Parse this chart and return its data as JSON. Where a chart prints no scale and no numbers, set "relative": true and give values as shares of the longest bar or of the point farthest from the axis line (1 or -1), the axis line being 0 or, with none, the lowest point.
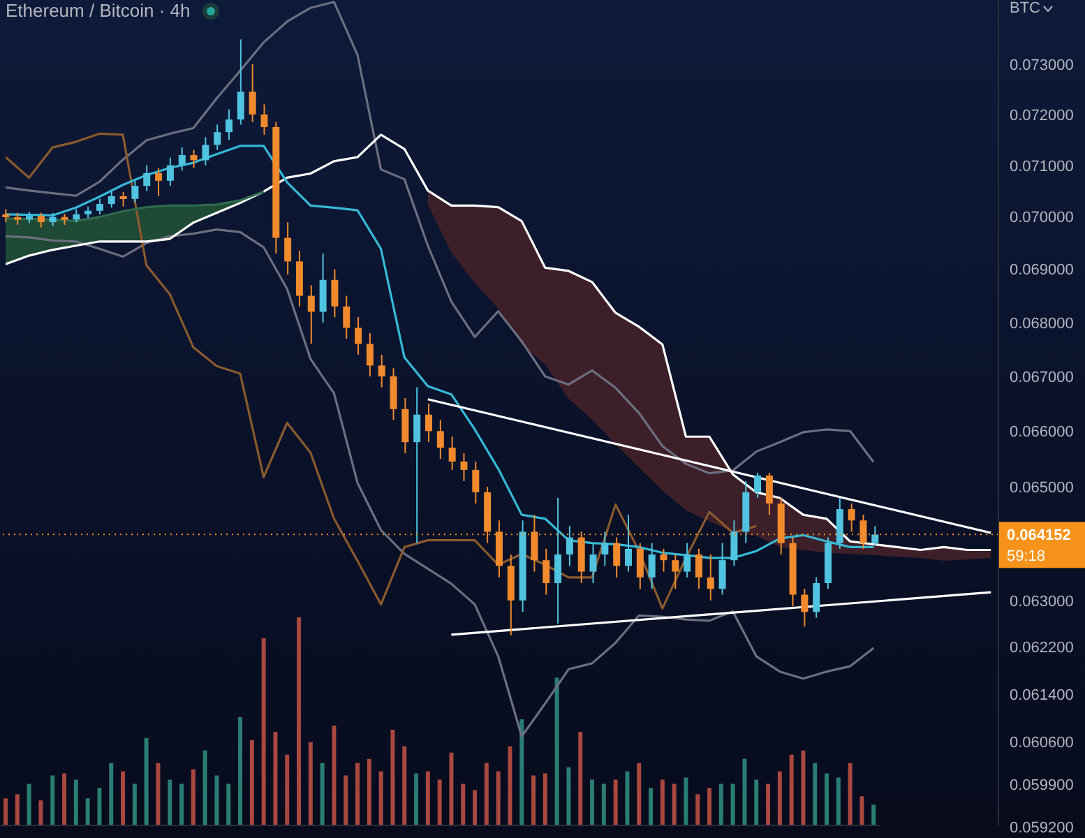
{
  "chart_data": [
    {
      "type": "candlestick",
      "title": "Ethereum / Bitcoin · 4h",
      "ylabel": "BTC",
      "log": true,
      "ylim": [
        0.0592,
        0.0743
      ],
      "tick_labels": "y",
      "yticks": [
        {
          "value": 0.0592,
          "label": "0.059200"
        },
        {
          "value": 0.0599,
          "label": "0.059900"
        },
        {
          "value": 0.0606,
          "label": "0.060600"
        },
        {
          "value": 0.0614,
          "label": "0.061400"
        },
        {
          "value": 0.0622,
          "label": "0.062200"
        },
        {
          "value": 0.063,
          "label": "0.063000"
        },
        {
          "value": 0.065,
          "label": "0.065000"
        },
        {
          "value": 0.066,
          "label": "0.066000"
        },
        {
          "value": 0.067,
          "label": "0.067000"
        },
        {
          "value": 0.068,
          "label": "0.068000"
        },
        {
          "value": 0.069,
          "label": "0.069000"
        },
        {
          "value": 0.07,
          "label": "0.070000"
        },
        {
          "value": 0.071,
          "label": "0.071000"
        },
        {
          "value": 0.072,
          "label": "0.072000"
        },
        {
          "value": 0.073,
          "label": "0.073000"
        }
      ],
      "ref_lines": [
        {
          "axis": "y",
          "value": 0.064152,
          "label": "0.064152",
          "color": "#f7931a",
          "line_style": "dotted"
        }
      ],
      "annotations": [
        "59:18"
      ],
      "categories": [
        null,
        null,
        null,
        null,
        null,
        null,
        null,
        null,
        null,
        null,
        null,
        null,
        null,
        null,
        null,
        null,
        null,
        null,
        null,
        null,
        null,
        null,
        null,
        null,
        null,
        null,
        null,
        null,
        null,
        null,
        null,
        null,
        null,
        null,
        null,
        null,
        null,
        null,
        null,
        null,
        null,
        null,
        null,
        null,
        null,
        null,
        null,
        null,
        null,
        null,
        null,
        null,
        null,
        null,
        null,
        null,
        null,
        null,
        null,
        null,
        null,
        null,
        null,
        null,
        null,
        null,
        null,
        null,
        null,
        null,
        null,
        null,
        null,
        null,
        null,
        null,
        null,
        null,
        null,
        null,
        null,
        null,
        null,
        null,
        null
      ],
      "ohlc": [
        [
          0.07005,
          0.07015,
          0.0699,
          0.07
        ],
        [
          0.07,
          0.07008,
          0.06985,
          0.06995
        ],
        [
          0.06995,
          0.0701,
          0.06988,
          0.07002
        ],
        [
          0.07002,
          0.07008,
          0.0698,
          0.0699
        ],
        [
          0.0699,
          0.07008,
          0.06982,
          0.07
        ],
        [
          0.07,
          0.07006,
          0.06985,
          0.06995
        ],
        [
          0.06995,
          0.07015,
          0.0699,
          0.07005
        ],
        [
          0.07005,
          0.0702,
          0.06998,
          0.07012
        ],
        [
          0.07012,
          0.07035,
          0.07005,
          0.07025
        ],
        [
          0.07025,
          0.0705,
          0.07018,
          0.0704
        ],
        [
          0.0704,
          0.07048,
          0.0702,
          0.07035
        ],
        [
          0.07035,
          0.0707,
          0.07028,
          0.0706
        ],
        [
          0.0706,
          0.071,
          0.0705,
          0.07085
        ],
        [
          0.07085,
          0.07095,
          0.0704,
          0.0707
        ],
        [
          0.0707,
          0.07115,
          0.0706,
          0.071
        ],
        [
          0.071,
          0.07135,
          0.0709,
          0.0712
        ],
        [
          0.0712,
          0.0713,
          0.07095,
          0.0711
        ],
        [
          0.0711,
          0.07155,
          0.071,
          0.0714
        ],
        [
          0.0714,
          0.0718,
          0.0713,
          0.07165
        ],
        [
          0.07165,
          0.0721,
          0.0715,
          0.0719
        ],
        [
          0.0719,
          0.0735,
          0.0718,
          0.07245
        ],
        [
          0.07245,
          0.073,
          0.07185,
          0.072
        ],
        [
          0.072,
          0.0722,
          0.0716,
          0.07175
        ],
        [
          0.07175,
          0.07185,
          0.0693,
          0.0696
        ],
        [
          0.0696,
          0.0699,
          0.0689,
          0.06915
        ],
        [
          0.06915,
          0.06935,
          0.0683,
          0.0685
        ],
        [
          0.0685,
          0.0687,
          0.0676,
          0.0682
        ],
        [
          0.0682,
          0.0693,
          0.068,
          0.0688
        ],
        [
          0.0688,
          0.069,
          0.0681,
          0.0683
        ],
        [
          0.0683,
          0.0685,
          0.0677,
          0.0679
        ],
        [
          0.0679,
          0.0681,
          0.0674,
          0.0676
        ],
        [
          0.0676,
          0.0678,
          0.067,
          0.0672
        ],
        [
          0.0672,
          0.0674,
          0.0668,
          0.067
        ],
        [
          0.067,
          0.06715,
          0.0662,
          0.0664
        ],
        [
          0.0664,
          0.0666,
          0.0656,
          0.0658
        ],
        [
          0.0658,
          0.0668,
          0.064,
          0.0663
        ],
        [
          0.0663,
          0.0665,
          0.0658,
          0.066
        ],
        [
          0.066,
          0.0662,
          0.0655,
          0.0657
        ],
        [
          0.0657,
          0.0659,
          0.0653,
          0.06545
        ],
        [
          0.06545,
          0.0656,
          0.0651,
          0.0653
        ],
        [
          0.0653,
          0.06545,
          0.0647,
          0.0649
        ],
        [
          0.0649,
          0.065,
          0.064,
          0.0642
        ],
        [
          0.0642,
          0.0644,
          0.0634,
          0.0636
        ],
        [
          0.0636,
          0.0638,
          0.0624,
          0.063
        ],
        [
          0.063,
          0.0644,
          0.0628,
          0.0642
        ],
        [
          0.0642,
          0.0645,
          0.0635,
          0.0637
        ],
        [
          0.0637,
          0.0639,
          0.0631,
          0.0633
        ],
        [
          0.0633,
          0.0648,
          0.0626,
          0.0638
        ],
        [
          0.0638,
          0.0643,
          0.0636,
          0.0641
        ],
        [
          0.0641,
          0.0642,
          0.0633,
          0.0635
        ],
        [
          0.0635,
          0.064,
          0.0633,
          0.0638
        ],
        [
          0.0638,
          0.0642,
          0.0636,
          0.064
        ],
        [
          0.064,
          0.0641,
          0.0634,
          0.0636
        ],
        [
          0.0636,
          0.0645,
          0.0635,
          0.0639
        ],
        [
          0.0639,
          0.064,
          0.0632,
          0.0634
        ],
        [
          0.0634,
          0.064,
          0.0632,
          0.0638
        ],
        [
          0.0638,
          0.0639,
          0.0635,
          0.0637
        ],
        [
          0.0637,
          0.0638,
          0.0632,
          0.0635
        ],
        [
          0.0635,
          0.064,
          0.0634,
          0.0638
        ],
        [
          0.0638,
          0.0639,
          0.0632,
          0.0634
        ],
        [
          0.0634,
          0.0638,
          0.063,
          0.0632
        ],
        [
          0.0632,
          0.064,
          0.0631,
          0.0637
        ],
        [
          0.0637,
          0.0644,
          0.0636,
          0.0642
        ],
        [
          0.0642,
          0.0651,
          0.064,
          0.0649
        ],
        [
          0.0649,
          0.06525,
          0.0648,
          0.0652
        ],
        [
          0.0652,
          0.06525,
          0.0645,
          0.0647
        ],
        [
          0.0647,
          0.0648,
          0.0638,
          0.064
        ],
        [
          0.064,
          0.0641,
          0.0629,
          0.0631
        ],
        [
          0.0631,
          0.0632,
          0.06255,
          0.0628
        ],
        [
          0.0628,
          0.0634,
          0.0627,
          0.0633
        ],
        [
          0.0633,
          0.0641,
          0.0632,
          0.064
        ],
        [
          0.064,
          0.0648,
          0.0639,
          0.0646
        ],
        [
          0.0646,
          0.0647,
          0.0642,
          0.0644
        ],
        [
          0.0644,
          0.0645,
          0.0639,
          0.064
        ],
        [
          0.064,
          0.0643,
          0.06395,
          0.06415
        ],
        null,
        null,
        null,
        null,
        null,
        null,
        null,
        null,
        null,
        null
      ],
      "colors": [
        "#f08a2c",
        "#f08a2c",
        "#4fc3e0",
        "#f08a2c",
        "#4fc3e0",
        "#f08a2c",
        "#4fc3e0",
        "#4fc3e0",
        "#4fc3e0",
        "#4fc3e0",
        "#f08a2c",
        "#4fc3e0",
        "#4fc3e0",
        "#f08a2c",
        "#4fc3e0",
        "#4fc3e0",
        "#f08a2c",
        "#4fc3e0",
        "#4fc3e0",
        "#4fc3e0",
        "#4fc3e0",
        "#f08a2c",
        "#f08a2c",
        "#f08a2c",
        "#f08a2c",
        "#f08a2c",
        "#f08a2c",
        "#4fc3e0",
        "#f08a2c",
        "#f08a2c",
        "#f08a2c",
        "#f08a2c",
        "#f08a2c",
        "#f08a2c",
        "#f08a2c",
        "#4fc3e0",
        "#f08a2c",
        "#f08a2c",
        "#f08a2c",
        "#f08a2c",
        "#f08a2c",
        "#f08a2c",
        "#f08a2c",
        "#f08a2c",
        "#4fc3e0",
        "#f08a2c",
        "#f08a2c",
        "#4fc3e0",
        "#4fc3e0",
        "#f08a2c",
        "#4fc3e0",
        "#4fc3e0",
        "#f08a2c",
        "#4fc3e0",
        "#f08a2c",
        "#4fc3e0",
        "#f08a2c",
        "#f08a2c",
        "#4fc3e0",
        "#f08a2c",
        "#f08a2c",
        "#4fc3e0",
        "#4fc3e0",
        "#4fc3e0",
        "#4fc3e0",
        "#f08a2c",
        "#f08a2c",
        "#f08a2c",
        "#f08a2c",
        "#4fc3e0",
        "#4fc3e0",
        "#4fc3e0",
        "#f08a2c",
        "#f08a2c",
        "#4fc3e0",
        null,
        null,
        null,
        null,
        null,
        null,
        null,
        null,
        null,
        null
      ]
    },
    {
      "type": "line",
      "log": true,
      "ylim": [
        0.0592,
        0.0743
      ],
      "tick_labels": false,
      "categories": [
        null,
        null,
        null,
        null,
        null,
        null,
        null,
        null,
        null,
        null,
        null,
        null,
        null,
        null,
        null,
        null,
        null,
        null,
        null,
        null,
        null,
        null,
        null,
        null,
        null,
        null,
        null,
        null,
        null,
        null,
        null,
        null,
        null,
        null,
        null,
        null,
        null,
        null,
        null,
        null,
        null,
        null,
        null
      ],
      "series": [
        {
          "color": "#6b6f80",
          "values": [
            0.07057,
            0.07051,
            0.07046,
            0.07041,
            0.07068,
            0.07111,
            0.07149,
            0.07162,
            0.07173,
            0.07232,
            0.07287,
            0.07344,
            0.07386,
            0.07414,
            0.07426,
            0.07319,
            0.07092,
            0.07073,
            0.06945,
            0.06839,
            0.06773,
            0.06821,
            0.06765,
            0.067,
            0.06685,
            0.06711,
            0.06679,
            0.06633,
            0.06573,
            0.06541,
            0.06524,
            0.06529,
            0.06563,
            0.0658,
            0.06598,
            0.06603,
            0.066,
            0.06544,
            null,
            null,
            null,
            null,
            null
          ]
        },
        {
          "color": "#6b6f80",
          "values": [
            0.06963,
            0.06961,
            0.06955,
            0.06953,
            0.06939,
            0.06924,
            0.0695,
            0.06963,
            0.06968,
            0.06976,
            0.06971,
            0.06942,
            0.06863,
            0.06732,
            0.06669,
            0.06507,
            0.06423,
            0.06381,
            0.06355,
            0.06329,
            0.06293,
            0.06204,
            0.06069,
            0.06124,
            0.06182,
            0.06192,
            0.06227,
            0.06274,
            0.06272,
            0.06267,
            0.06265,
            0.06281,
            0.06204,
            0.06178,
            0.06166,
            0.06178,
            0.06187,
            0.06218,
            null,
            null,
            null,
            null,
            null
          ]
        },
        {
          "color": "#8a5a2e",
          "values": [
            0.07116,
            0.07076,
            0.07135,
            0.07146,
            0.07162,
            0.0716,
            0.06908,
            0.06853,
            0.06754,
            0.06719,
            0.06705,
            0.06517,
            0.06615,
            0.06561,
            0.06443,
            0.06369,
            0.06293,
            0.06393,
            0.06405,
            0.06405,
            0.06405,
            0.06362,
            0.06381,
            0.06362,
            0.0634,
            0.0634,
            0.06468,
            0.06386,
            0.06286,
            0.06374,
            0.06455,
            0.06418,
            0.0643,
            null,
            null,
            null,
            null,
            null,
            null,
            null,
            null,
            null,
            null
          ]
        },
        {
          "color": "#ffffff",
          "values": [
            0.0691,
            0.06926,
            0.06937,
            0.06945,
            0.06953,
            0.06953,
            0.06953,
            0.06958,
            0.06989,
            0.07008,
            0.07027,
            0.07049,
            0.07076,
            0.07084,
            0.07108,
            0.07116,
            0.0716,
            0.07132,
            0.07051,
            0.07022,
            0.07022,
            0.07019,
            0.06992,
            0.06903,
            0.06897,
            0.06876,
            0.06818,
            0.06792,
            0.06759,
            0.0659,
            0.0659,
            0.06522,
            0.0649,
            0.0648,
            0.0645,
            0.06443,
            0.06403,
            0.06398,
            0.06393,
            0.06388,
            0.06393,
            0.06388,
            0.06388
          ],
          "lower": [
            null,
            null,
            null,
            null,
            null,
            null,
            null,
            null,
            null,
            null,
            null,
            null,
            null,
            null,
            null,
            null,
            null,
            null,
            0.07024,
            0.06932,
            0.06874,
            0.06826,
            0.06759,
            0.06722,
            0.06659,
            0.06621,
            0.06576,
            0.06534,
            0.06493,
            0.06458,
            0.06438,
            0.0642,
            0.06413,
            0.06393,
            0.06388,
            0.06383,
            0.06381,
            0.06379,
            0.06376,
            0.06374,
            0.06369,
            0.06371,
            0.06374
          ],
          "upper": [
            null,
            null,
            null,
            null,
            null,
            null,
            null,
            null,
            null,
            null,
            null,
            null,
            null,
            null,
            null,
            null,
            null,
            null,
            0.07051,
            0.07022,
            0.07022,
            0.07019,
            0.06992,
            0.06903,
            0.06897,
            0.06876,
            0.06818,
            0.06792,
            0.06759,
            0.0659,
            0.0659,
            0.06522,
            0.0649,
            0.0648,
            0.0645,
            0.06443,
            0.06403,
            0.06398,
            0.06393,
            0.06388,
            0.06393,
            0.06388,
            0.06388
          ],
          "colors": [
            null,
            null,
            null,
            null,
            null,
            null,
            null,
            null,
            null,
            null,
            null,
            null,
            null,
            null,
            null,
            null,
            null,
            null,
            "#3d1f2a",
            "#3d1f2a",
            "#3d1f2a",
            "#3d1f2a",
            "#3d1f2a",
            "#3d1f2a",
            "#3d1f2a",
            "#3d1f2a",
            "#3d1f2a",
            "#3d1f2a",
            "#3d1f2a",
            "#3d1f2a",
            "#3d1f2a",
            "#3d1f2a",
            "#3d1f2a",
            "#3d1f2a",
            "#3d1f2a",
            "#3d1f2a",
            "#3d1f2a",
            "#3d1f2a",
            "#3d1f2a",
            "#3d1f2a",
            "#3d1f2a",
            "#3d1f2a",
            "#3d1f2a"
          ]
        },
        {
          "color": "#2e6b4c",
          "values": [
            0.06997,
            0.06996,
            0.06995,
            0.06992,
            0.07,
            0.07011,
            0.07019,
            0.07022,
            0.07022,
            0.07024,
            0.07032,
            0.07049,
            null,
            null,
            null,
            null,
            null,
            null,
            null,
            null,
            null,
            null,
            null,
            null,
            null,
            null,
            null,
            null,
            null,
            null,
            null,
            null,
            null,
            null,
            null,
            null,
            null,
            null,
            null,
            null,
            null,
            null,
            null
          ],
          "lower": [
            0.0691,
            0.06926,
            0.06937,
            0.06945,
            0.06953,
            0.06953,
            0.06953,
            0.06958,
            0.06989,
            0.07008,
            0.07027,
            0.07049,
            null,
            null,
            null,
            null,
            null,
            null,
            null,
            null,
            null,
            null,
            null,
            null,
            null,
            null,
            null,
            null,
            null,
            null,
            null,
            null,
            null,
            null,
            null,
            null,
            null,
            null,
            null,
            null,
            null,
            null,
            null
          ],
          "upper": [
            0.06997,
            0.06996,
            0.06995,
            0.06992,
            0.07,
            0.07011,
            0.07019,
            0.07022,
            0.07022,
            0.07024,
            0.07032,
            0.07049,
            null,
            null,
            null,
            null,
            null,
            null,
            null,
            null,
            null,
            null,
            null,
            null,
            null,
            null,
            null,
            null,
            null,
            null,
            null,
            null,
            null,
            null,
            null,
            null,
            null,
            null,
            null,
            null,
            null,
            null,
            null
          ],
          "colors": [
            "#1f4a35",
            "#1f4a35",
            "#1f4a35",
            "#1f4a35",
            "#1f4a35",
            "#1f4a35",
            "#1f4a35",
            "#1f4a35",
            "#1f4a35",
            "#1f4a35",
            "#1f4a35",
            "#1f4a35",
            null,
            null,
            null,
            null,
            null,
            null,
            null,
            null,
            null,
            null,
            null,
            null,
            null,
            null,
            null,
            null,
            null,
            null,
            null,
            null,
            null,
            null,
            null,
            null,
            null,
            null,
            null,
            null,
            null,
            null,
            null
          ]
        },
        {
          "color": "#35b9d6",
          "values": [
            0.07005,
            0.07004,
            0.07003,
            0.07018,
            0.07039,
            0.07062,
            0.07081,
            0.07095,
            0.07105,
            0.07122,
            0.07138,
            0.07138,
            0.07067,
            0.07022,
            0.07018,
            0.07013,
            0.06939,
            0.06735,
            0.06682,
            0.06667,
            0.06603,
            0.06532,
            0.0645,
            0.06443,
            0.06405,
            0.064,
            0.06398,
            0.06393,
            0.06383,
            0.06379,
            0.06374,
            0.06374,
            0.06386,
            0.06408,
            0.06414,
            0.06403,
            0.06393,
            0.06393,
            null,
            null,
            null,
            null,
            null
          ]
        },
        {
          "color": "#ffffff",
          "values": [
            null,
            null,
            null,
            null,
            null,
            null,
            null,
            null,
            null,
            null,
            null,
            null,
            null,
            null,
            null,
            null,
            null,
            null,
            0.06658,
            null,
            null,
            null,
            null,
            null,
            null,
            null,
            null,
            null,
            null,
            null,
            null,
            null,
            null,
            null,
            null,
            null,
            null,
            null,
            null,
            null,
            null,
            null,
            0.06418
          ]
        },
        {
          "color": "#ffffff",
          "values": [
            null,
            null,
            null,
            null,
            null,
            null,
            null,
            null,
            null,
            null,
            null,
            null,
            null,
            null,
            null,
            null,
            null,
            null,
            null,
            0.06241,
            null,
            null,
            null,
            null,
            null,
            null,
            null,
            null,
            null,
            null,
            null,
            null,
            null,
            null,
            null,
            null,
            null,
            null,
            null,
            null,
            null,
            null,
            0.06314
          ]
        }
      ]
    },
    {
      "type": "bar",
      "relative": true,
      "categories": [
        null,
        null,
        null,
        null,
        null,
        null,
        null,
        null,
        null,
        null,
        null,
        null,
        null,
        null,
        null,
        null,
        null,
        null,
        null,
        null,
        null,
        null,
        null,
        null,
        null,
        null,
        null,
        null,
        null,
        null,
        null,
        null,
        null,
        null,
        null,
        null,
        null,
        null,
        null,
        null,
        null,
        null,
        null,
        null,
        null,
        null,
        null,
        null,
        null,
        null,
        null,
        null,
        null,
        null,
        null,
        null,
        null,
        null,
        null,
        null,
        null,
        null,
        null,
        null,
        null,
        null,
        null,
        null,
        null,
        null,
        null,
        null,
        null,
        null,
        null
      ],
      "values": [
        0.13,
        0.15,
        0.2,
        0.12,
        0.24,
        0.25,
        0.22,
        0.13,
        0.18,
        0.3,
        0.26,
        0.2,
        0.42,
        0.3,
        0.22,
        0.2,
        0.27,
        0.36,
        0.24,
        0.2,
        0.52,
        0.41,
        0.9,
        0.45,
        0.34,
        1,
        0.4,
        0.3,
        0.48,
        0.24,
        0.3,
        0.32,
        0.26,
        0.46,
        0.38,
        0.25,
        0.26,
        0.22,
        0.35,
        0.2,
        0.17,
        0.3,
        0.26,
        0.38,
        0.51,
        0.24,
        0.25,
        0.71,
        0.28,
        0.45,
        0.22,
        0.2,
        0.22,
        0.26,
        0.3,
        0.18,
        0.22,
        0.2,
        0.23,
        0.15,
        0.18,
        0.2,
        0.2,
        0.32,
        0.22,
        0.2,
        0.26,
        0.34,
        0.36,
        0.3,
        0.25,
        0.23,
        0.3,
        0.14,
        0.1
      ],
      "colors": [
        "#a8483f",
        "#a8483f",
        "#2a7d73",
        "#a8483f",
        "#2a7d73",
        "#a8483f",
        "#2a7d73",
        "#2a7d73",
        "#2a7d73",
        "#2a7d73",
        "#a8483f",
        "#2a7d73",
        "#2a7d73",
        "#a8483f",
        "#2a7d73",
        "#2a7d73",
        "#a8483f",
        "#2a7d73",
        "#2a7d73",
        "#2a7d73",
        "#2a7d73",
        "#a8483f",
        "#a8483f",
        "#a8483f",
        "#a8483f",
        "#a8483f",
        "#a8483f",
        "#2a7d73",
        "#a8483f",
        "#a8483f",
        "#a8483f",
        "#a8483f",
        "#a8483f",
        "#a8483f",
        "#a8483f",
        "#2a7d73",
        "#a8483f",
        "#a8483f",
        "#a8483f",
        "#a8483f",
        "#a8483f",
        "#a8483f",
        "#a8483f",
        "#a8483f",
        "#2a7d73",
        "#a8483f",
        "#a8483f",
        "#2a7d73",
        "#2a7d73",
        "#a8483f",
        "#2a7d73",
        "#2a7d73",
        "#a8483f",
        "#2a7d73",
        "#a8483f",
        "#2a7d73",
        "#a8483f",
        "#a8483f",
        "#2a7d73",
        "#a8483f",
        "#a8483f",
        "#2a7d73",
        "#2a7d73",
        "#2a7d73",
        "#2a7d73",
        "#a8483f",
        "#a8483f",
        "#a8483f",
        "#a8483f",
        "#2a7d73",
        "#2a7d73",
        "#2a7d73",
        "#a8483f",
        "#a8483f",
        "#2a7d73"
      ]
    }
  ]
}
